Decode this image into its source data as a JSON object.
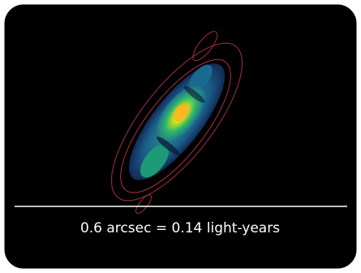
{
  "caption": "0.6 arcsec = 0.14 light-years"
}
